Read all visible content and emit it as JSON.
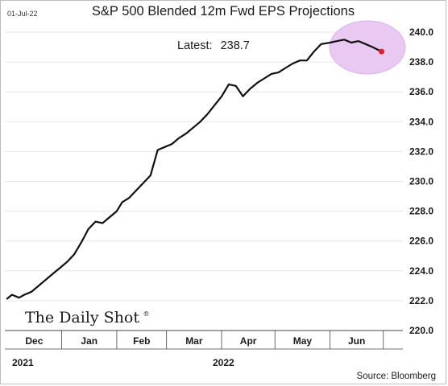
{
  "header": {
    "date_stamp": "01-Jul-22",
    "title": "S&P 500 Blended 12m Fwd EPS Projections",
    "latest_label": "Latest:",
    "latest_value": "238.7"
  },
  "footer": {
    "logo_text": "The Daily Shot",
    "logo_mark": "®",
    "source": "Source: Bloomberg"
  },
  "colors": {
    "line": "#111111",
    "highlight_fill": "#e9c8f2",
    "highlight_stroke": "#e0b0ee",
    "end_marker": "#e0202a"
  },
  "chart_data": {
    "type": "line",
    "title": "S&P 500 Blended 12m Fwd EPS Projections",
    "xlabel": "",
    "ylabel": "",
    "ylim": [
      220,
      240
    ],
    "y_ticks": [
      "220.0",
      "222.0",
      "224.0",
      "226.0",
      "228.0",
      "230.0",
      "232.0",
      "234.0",
      "236.0",
      "238.0",
      "240.0"
    ],
    "x_tick_labels": [
      "Dec",
      "Jan",
      "Feb",
      "Mar",
      "Apr",
      "May",
      "Jun"
    ],
    "year_labels": [
      "2021",
      "2022"
    ],
    "grid": true,
    "x": [
      "2021-12-01",
      "2021-12-04",
      "2021-12-08",
      "2021-12-11",
      "2021-12-15",
      "2021-12-19",
      "2021-12-23",
      "2021-12-27",
      "2021-12-31",
      "2022-01-04",
      "2022-01-08",
      "2022-01-12",
      "2022-01-16",
      "2022-01-20",
      "2022-01-24",
      "2022-01-28",
      "2022-02-01",
      "2022-02-04",
      "2022-02-08",
      "2022-02-12",
      "2022-02-16",
      "2022-02-20",
      "2022-02-24",
      "2022-02-28",
      "2022-03-04",
      "2022-03-08",
      "2022-03-12",
      "2022-03-16",
      "2022-03-20",
      "2022-03-24",
      "2022-03-28",
      "2022-04-01",
      "2022-04-05",
      "2022-04-09",
      "2022-04-13",
      "2022-04-17",
      "2022-04-21",
      "2022-04-25",
      "2022-04-29",
      "2022-05-03",
      "2022-05-07",
      "2022-05-11",
      "2022-05-15",
      "2022-05-19",
      "2022-05-23",
      "2022-05-27",
      "2022-06-01",
      "2022-06-05",
      "2022-06-09",
      "2022-06-13",
      "2022-06-17",
      "2022-06-21",
      "2022-06-25",
      "2022-06-30"
    ],
    "values": [
      222.1,
      222.4,
      222.2,
      222.4,
      222.6,
      223.0,
      223.4,
      223.8,
      224.2,
      224.6,
      225.1,
      225.9,
      226.8,
      227.3,
      227.2,
      227.6,
      228.0,
      228.6,
      228.9,
      229.4,
      229.9,
      230.4,
      232.1,
      232.3,
      232.5,
      232.9,
      233.2,
      233.6,
      234.0,
      234.5,
      235.1,
      235.7,
      236.5,
      236.4,
      235.7,
      236.2,
      236.6,
      236.9,
      237.2,
      237.3,
      237.6,
      237.9,
      238.1,
      238.1,
      238.7,
      239.2,
      239.3,
      239.4,
      239.5,
      239.3,
      239.4,
      239.2,
      239.0,
      238.7
    ]
  }
}
